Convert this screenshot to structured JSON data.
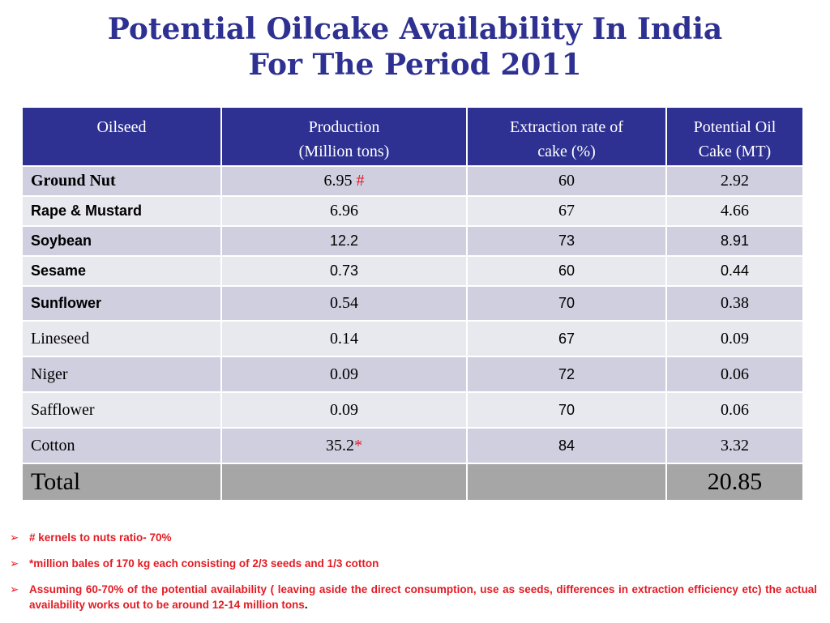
{
  "title": {
    "line1": "Potential Oilcake Availability In India",
    "line2": "For The Period 2011"
  },
  "table": {
    "headers": {
      "oilseed": "Oilseed",
      "production_l1": "Production",
      "production_l2": "(Million tons)",
      "extraction_l1": "Extraction rate of",
      "extraction_l2": "cake (%)",
      "potential_l1": "Potential Oil",
      "potential_l2": "Cake (MT)"
    },
    "rows": [
      {
        "name": "Ground Nut",
        "production": "6.95",
        "production_mark": "#",
        "extraction": "60",
        "potential": "2.92"
      },
      {
        "name": "Rape & Mustard",
        "production": "6.96",
        "production_mark": "",
        "extraction": "67",
        "potential": "4.66"
      },
      {
        "name": "Soybean",
        "production": "12.2",
        "production_mark": "",
        "extraction": "73",
        "potential": "8.91"
      },
      {
        "name": "Sesame",
        "production": "0.73",
        "production_mark": "",
        "extraction": "60",
        "potential": "0.44"
      },
      {
        "name": "Sunflower",
        "production": "0.54",
        "production_mark": "",
        "extraction": "70",
        "potential": "0.38"
      },
      {
        "name": "Lineseed",
        "production": "0.14",
        "production_mark": "",
        "extraction": "67",
        "potential": "0.09"
      },
      {
        "name": "Niger",
        "production": "0.09",
        "production_mark": "",
        "extraction": "72",
        "potential": "0.06"
      },
      {
        "name": "Safflower",
        "production": "0.09",
        "production_mark": "",
        "extraction": "70",
        "potential": "0.06"
      },
      {
        "name": "Cotton",
        "production": "35.2",
        "production_mark": "*",
        "extraction": "84",
        "potential": "3.32"
      }
    ],
    "total": {
      "label": "Total",
      "production": "",
      "extraction": "",
      "potential": "20.85"
    }
  },
  "notes": {
    "bullet": "➢",
    "items": [
      "# kernels to nuts ratio- 70%",
      "*million bales of 170 kg each consisting of 2/3 seeds and 1/3 cotton",
      "Assuming 60-70% of the potential availability  ( leaving aside the direct consumption, use as seeds,  differences in extraction efficiency  etc)  the actual  availability  works out to be around 12-14 million tons"
    ],
    "trailing_period": "."
  },
  "colors": {
    "title": "#2e3192",
    "header_bg": "#2e3192",
    "row_dark": "#cfcfe0",
    "row_light": "#e8e8ef",
    "total_bg": "#a6a6a6",
    "note_red": "#e31b23"
  }
}
